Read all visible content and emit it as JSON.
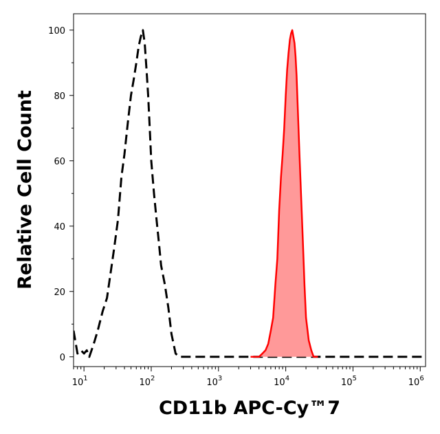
{
  "chart_data": {
    "type": "area",
    "title": "",
    "xlabel": "CD11b APC-Cy™7",
    "ylabel": "Relative Cell Count",
    "x_scale": "log",
    "xlim": [
      7,
      1200000
    ],
    "ylim": [
      -3,
      105
    ],
    "x_ticks": [
      {
        "value": 10,
        "base": "10",
        "exp": "1"
      },
      {
        "value": 100,
        "base": "10",
        "exp": "2"
      },
      {
        "value": 1000,
        "base": "10",
        "exp": "3"
      },
      {
        "value": 10000,
        "base": "10",
        "exp": "4"
      },
      {
        "value": 100000,
        "base": "10",
        "exp": "5"
      },
      {
        "value": 1000000,
        "base": "10",
        "exp": "6"
      }
    ],
    "y_ticks": [
      {
        "value": 0,
        "label": "0"
      },
      {
        "value": 20,
        "label": "20"
      },
      {
        "value": 40,
        "label": "40"
      },
      {
        "value": 60,
        "label": "60"
      },
      {
        "value": 80,
        "label": "80"
      },
      {
        "value": 100,
        "label": "100"
      }
    ],
    "grid": false,
    "legend": "none",
    "series": [
      {
        "style": "dashed",
        "color": "#000000",
        "fill": "none",
        "points": [
          [
            7,
            8
          ],
          [
            8,
            1
          ],
          [
            9,
            2
          ],
          [
            10,
            1
          ],
          [
            11,
            2
          ],
          [
            12,
            0
          ],
          [
            14,
            4
          ],
          [
            16,
            8
          ],
          [
            19,
            14
          ],
          [
            22,
            18
          ],
          [
            25,
            26
          ],
          [
            28,
            33
          ],
          [
            32,
            42
          ],
          [
            36,
            55
          ],
          [
            40,
            62
          ],
          [
            45,
            72
          ],
          [
            50,
            80
          ],
          [
            55,
            85
          ],
          [
            60,
            90
          ],
          [
            65,
            95
          ],
          [
            70,
            98
          ],
          [
            75,
            100
          ],
          [
            80,
            96
          ],
          [
            85,
            88
          ],
          [
            90,
            80
          ],
          [
            95,
            70
          ],
          [
            100,
            60
          ],
          [
            110,
            50
          ],
          [
            120,
            42
          ],
          [
            130,
            35
          ],
          [
            140,
            28
          ],
          [
            160,
            22
          ],
          [
            180,
            15
          ],
          [
            200,
            7
          ],
          [
            230,
            1
          ],
          [
            260,
            0
          ],
          [
            1200000,
            0
          ]
        ]
      },
      {
        "style": "solid",
        "color": "#ff0000",
        "fill": "#ff9999",
        "points": [
          [
            3000,
            0
          ],
          [
            4000,
            0
          ],
          [
            4500,
            1
          ],
          [
            5000,
            2
          ],
          [
            5500,
            4
          ],
          [
            6000,
            8
          ],
          [
            6500,
            12
          ],
          [
            7000,
            22
          ],
          [
            7500,
            30
          ],
          [
            8000,
            45
          ],
          [
            8500,
            55
          ],
          [
            9000,
            62
          ],
          [
            9500,
            70
          ],
          [
            10000,
            80
          ],
          [
            10500,
            88
          ],
          [
            11000,
            93
          ],
          [
            11500,
            97
          ],
          [
            12000,
            99
          ],
          [
            12500,
            100
          ],
          [
            13000,
            98
          ],
          [
            13500,
            96
          ],
          [
            14000,
            92
          ],
          [
            14500,
            86
          ],
          [
            15000,
            78
          ],
          [
            16000,
            62
          ],
          [
            17000,
            48
          ],
          [
            18000,
            35
          ],
          [
            19000,
            22
          ],
          [
            20000,
            12
          ],
          [
            22000,
            5
          ],
          [
            24000,
            2
          ],
          [
            26000,
            0
          ],
          [
            30000,
            0
          ]
        ]
      }
    ]
  }
}
